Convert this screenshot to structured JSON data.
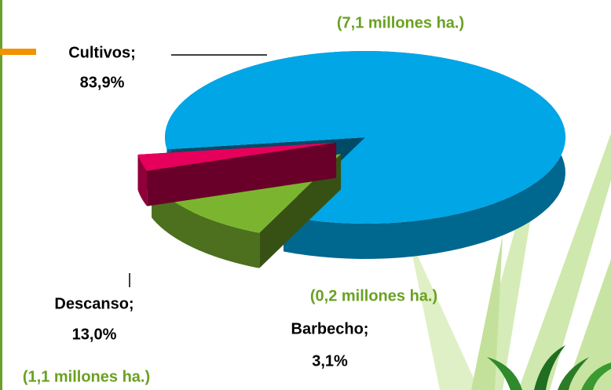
{
  "chart_data": {
    "type": "pie3d",
    "categories": [
      "Cultivos;",
      "Descanso;",
      "Barbecho;"
    ],
    "values": [
      83.9,
      13.0,
      3.1
    ],
    "value_labels": [
      "83,9%",
      "13,0%",
      "3,1%"
    ],
    "colors": [
      "#00a6e6",
      "#7bb52f",
      "#e6005c"
    ],
    "annotations": [
      "(7,1 millones ha.)",
      "(1,1 millones ha.)",
      "(0,2 millones  ha.)"
    ]
  }
}
